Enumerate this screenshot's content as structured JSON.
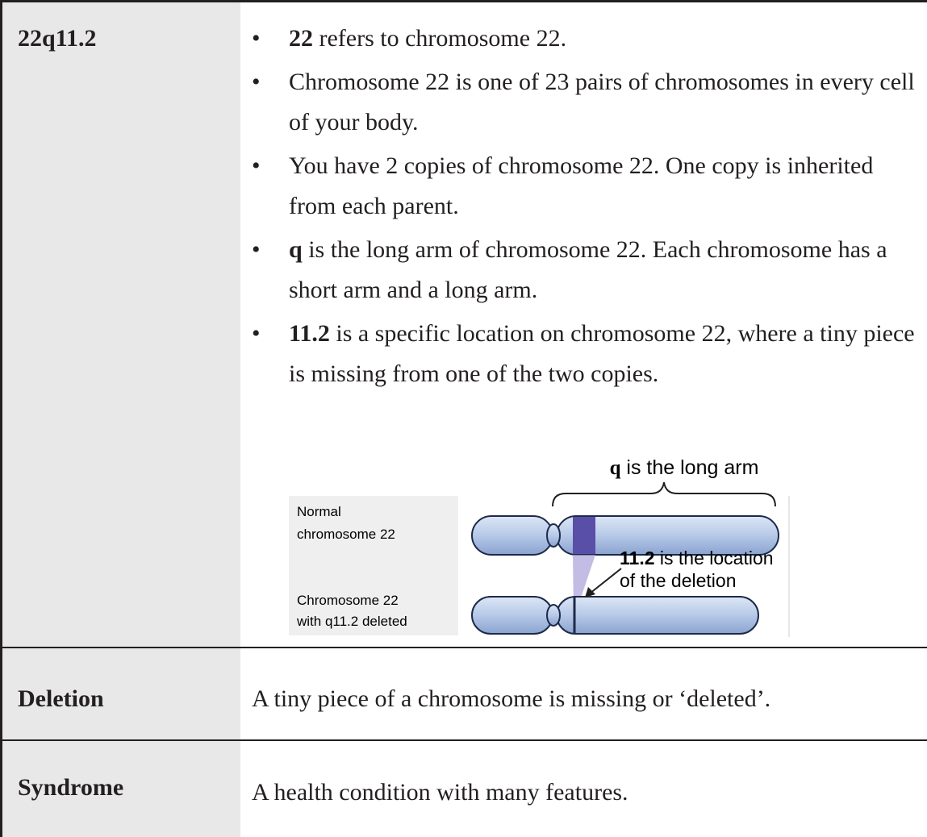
{
  "rows": [
    {
      "term": "22q11.2",
      "bullets": [
        {
          "bold": "22",
          "text": " refers to chromosome 22."
        },
        {
          "text": "Chromosome 22 is one of 23 pairs of chromosomes in every cell of your body."
        },
        {
          "text": "You have 2 copies of chromosome 22. One copy is inherited from each parent."
        },
        {
          "bold": "q",
          "text": " is the long arm of chromosome 22. Each chromosome has a short arm and a long arm."
        },
        {
          "bold": "11.2",
          "text": " is a specific location on chromosome 22, where a tiny piece is missing from one of the two copies."
        }
      ],
      "figure": {
        "arm_label": {
          "bold": "q",
          "text": " is the long arm"
        },
        "normal_label": [
          "Normal",
          "chromosome 22"
        ],
        "deleted_label": [
          "Chromosome 22",
          "with q11.2 deleted"
        ],
        "location_label": {
          "bold": "11.2",
          "text": " is the location",
          "line2": "of the deletion"
        }
      }
    },
    {
      "term": "Deletion",
      "definition": "A tiny piece of a chromosome is missing or ‘deleted’."
    },
    {
      "term": "Syndrome",
      "definition": "A health condition with many features."
    }
  ]
}
